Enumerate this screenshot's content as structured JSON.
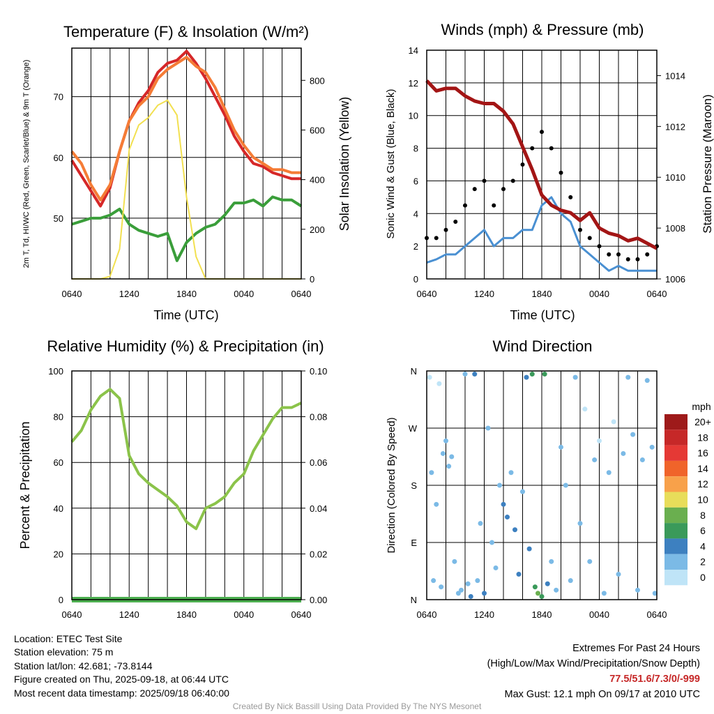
{
  "chart_data": [
    {
      "type": "line",
      "title": "Temperature (F) & Insolation (W/m²)",
      "xlabel": "Time (UTC)",
      "ylabel": "2m T, Td, HI/WC (Red, Green, Scarlet/Blue) & 9m T (Orange)",
      "ylabel_right": "Solar Insolation (Yellow)",
      "x_ticks": [
        "0640",
        "1240",
        "1840",
        "0040",
        "0640"
      ],
      "ylim": [
        40,
        78
      ],
      "y_ticks": [
        50,
        60,
        70
      ],
      "ylim_right": [
        0,
        930
      ],
      "y_ticks_right": [
        0,
        200,
        400,
        600,
        800
      ],
      "grid": true,
      "hours": [
        0,
        1,
        2,
        3,
        4,
        5,
        6,
        7,
        8,
        9,
        10,
        11,
        12,
        13,
        14,
        15,
        16,
        17,
        18,
        19,
        20,
        21,
        22,
        23,
        24
      ],
      "series": [
        {
          "key": "temp2m",
          "color": "#d62728",
          "values": [
            59.5,
            57,
            54.5,
            52,
            55,
            61,
            66,
            69,
            71,
            74,
            75.5,
            76,
            77.5,
            75.5,
            73,
            70,
            67,
            63.5,
            61,
            59,
            58.5,
            57.5,
            57,
            56.5,
            56.5
          ]
        },
        {
          "key": "temp9m",
          "color": "#f57c36",
          "values": [
            61,
            59,
            55.5,
            53,
            55.5,
            61,
            66,
            68.5,
            70,
            73,
            74.5,
            75.5,
            76.5,
            75,
            74,
            71.5,
            68,
            64.5,
            62,
            60,
            59,
            58,
            58,
            57.5,
            57.5
          ]
        },
        {
          "key": "dewpoint",
          "color": "#3a9e3a",
          "values": [
            49,
            49.5,
            50,
            50,
            50.5,
            51.5,
            49,
            48,
            47.5,
            47,
            47.5,
            43,
            46,
            47.5,
            48.5,
            49,
            50.5,
            52.5,
            52.5,
            53,
            52,
            53.5,
            53,
            53,
            52
          ]
        },
        {
          "key": "insolation",
          "color": "#f2e050",
          "values": [
            0,
            0,
            0,
            0,
            10,
            120,
            520,
            620,
            650,
            700,
            720,
            660,
            330,
            90,
            0,
            0,
            0,
            0,
            0,
            0,
            0,
            0,
            0,
            0,
            0
          ]
        }
      ]
    },
    {
      "type": "line",
      "title": "Winds (mph) & Pressure (mb)",
      "xlabel": "Time (UTC)",
      "ylabel": "Sonic Wind & Gust (Blue, Black)",
      "ylabel_right": "Station Pressure (Maroon)",
      "x_ticks": [
        "0640",
        "1240",
        "1840",
        "0040",
        "0640"
      ],
      "ylim": [
        0,
        14
      ],
      "y_ticks": [
        0,
        2,
        4,
        6,
        8,
        10,
        12,
        14
      ],
      "ylim_right": [
        1006,
        1015
      ],
      "y_ticks_right": [
        1006,
        1008,
        1010,
        1012,
        1014
      ],
      "grid": true,
      "hours": [
        0,
        1,
        2,
        3,
        4,
        5,
        6,
        7,
        8,
        9,
        10,
        11,
        12,
        13,
        14,
        15,
        16,
        17,
        18,
        19,
        20,
        21,
        22,
        23,
        24
      ],
      "series": [
        {
          "key": "wind",
          "color": "#4a90d2",
          "values": [
            1,
            1.2,
            1.5,
            1.5,
            2,
            2.5,
            3,
            2,
            2.5,
            2.5,
            3,
            3,
            4.5,
            5,
            4,
            3.5,
            2,
            1.5,
            1,
            0.5,
            0.8,
            0.5,
            0.5,
            0.5,
            0.5
          ]
        },
        {
          "key": "gust",
          "color": "#000000",
          "values": [
            2.5,
            2.5,
            3,
            3.5,
            4.5,
            5.5,
            6,
            4.5,
            5.5,
            6,
            7,
            8,
            9,
            8,
            6.5,
            5,
            3,
            2.5,
            2,
            1.5,
            1.5,
            1.2,
            1.2,
            1.5,
            2
          ]
        },
        {
          "key": "pressure",
          "color": "#a31515",
          "values": [
            1013.8,
            1013.4,
            1013.5,
            1013.5,
            1013.2,
            1013,
            1012.9,
            1012.9,
            1012.6,
            1012.1,
            1011.2,
            1010.3,
            1009.3,
            1008.9,
            1008.7,
            1008.6,
            1008.3,
            1008.6,
            1008.0,
            1007.8,
            1007.7,
            1007.5,
            1007.6,
            1007.4,
            1007.2
          ]
        }
      ]
    },
    {
      "type": "line",
      "title": "Relative Humidity (%) & Precipitation (in)",
      "xlabel": "",
      "ylabel": "Percent & Precipitation",
      "x_ticks": [
        "0640",
        "1240",
        "1840",
        "0040",
        "0640"
      ],
      "ylim": [
        0,
        100
      ],
      "y_ticks": [
        0,
        20,
        40,
        60,
        80,
        100
      ],
      "ylim_right": [
        0,
        0.1
      ],
      "y_ticks_right": [
        "0.00",
        "0.02",
        "0.04",
        "0.06",
        "0.08",
        "0.10"
      ],
      "grid": true,
      "hours": [
        0,
        1,
        2,
        3,
        4,
        5,
        6,
        7,
        8,
        9,
        10,
        11,
        12,
        13,
        14,
        15,
        16,
        17,
        18,
        19,
        20,
        21,
        22,
        23,
        24
      ],
      "series": [
        {
          "key": "rh",
          "color": "#8bc34a",
          "values": [
            69,
            74,
            83,
            89,
            92,
            88,
            63,
            55,
            51,
            48,
            45,
            41,
            34,
            31,
            40,
            42,
            45,
            51,
            55,
            65,
            72,
            79,
            84,
            84,
            86
          ]
        },
        {
          "key": "precip",
          "color": "#4caf50",
          "values": [
            0,
            0,
            0,
            0,
            0,
            0,
            0,
            0,
            0,
            0,
            0,
            0,
            0,
            0,
            0,
            0,
            0,
            0,
            0,
            0,
            0,
            0,
            0,
            0,
            0
          ]
        }
      ]
    },
    {
      "type": "scatter",
      "title": "Wind Direction",
      "xlabel": "",
      "ylabel": "Direction (Colored By Speed)",
      "x_ticks": [
        "0640",
        "1240",
        "1840",
        "0040",
        "0640"
      ],
      "y_ticks": [
        "N",
        "E",
        "S",
        "W",
        "N"
      ],
      "ylim": [
        0,
        360
      ],
      "grid": true,
      "colorbar": {
        "unit": "mph",
        "labels": [
          "20+",
          "18",
          "16",
          "14",
          "12",
          "10",
          "8",
          "6",
          "4",
          "2",
          "0"
        ],
        "colors": [
          "#9e1a1a",
          "#c62828",
          "#e53935",
          "#f0642a",
          "#f8a14a",
          "#e8dd5a",
          "#6aaf4f",
          "#3a9a5a",
          "#3d80c0",
          "#7bbae6",
          "#bfe4f7"
        ]
      },
      "points": [
        {
          "hour": 0.3,
          "dir": 350,
          "mph": 0.5
        },
        {
          "hour": 0.5,
          "dir": 200,
          "mph": 1
        },
        {
          "hour": 0.7,
          "dir": 30,
          "mph": 1
        },
        {
          "hour": 1,
          "dir": 150,
          "mph": 1
        },
        {
          "hour": 1.3,
          "dir": 340,
          "mph": 0.5
        },
        {
          "hour": 1.5,
          "dir": 20,
          "mph": 1
        },
        {
          "hour": 1.7,
          "dir": 230,
          "mph": 1.5
        },
        {
          "hour": 2,
          "dir": 250,
          "mph": 1
        },
        {
          "hour": 2.3,
          "dir": 210,
          "mph": 1.5
        },
        {
          "hour": 2.6,
          "dir": 225,
          "mph": 1
        },
        {
          "hour": 2.9,
          "dir": 60,
          "mph": 1
        },
        {
          "hour": 3.3,
          "dir": 10,
          "mph": 2
        },
        {
          "hour": 3.6,
          "dir": 15,
          "mph": 2.5
        },
        {
          "hour": 4,
          "dir": 355,
          "mph": 2.5
        },
        {
          "hour": 4.3,
          "dir": 25,
          "mph": 2
        },
        {
          "hour": 4.6,
          "dir": 5,
          "mph": 3.5
        },
        {
          "hour": 5,
          "dir": 355,
          "mph": 3
        },
        {
          "hour": 5.3,
          "dir": 30,
          "mph": 2.5
        },
        {
          "hour": 5.6,
          "dir": 120,
          "mph": 1.5
        },
        {
          "hour": 6,
          "dir": 10,
          "mph": 3
        },
        {
          "hour": 6.4,
          "dir": 270,
          "mph": 1
        },
        {
          "hour": 6.8,
          "dir": 90,
          "mph": 2
        },
        {
          "hour": 7.2,
          "dir": 50,
          "mph": 2
        },
        {
          "hour": 7.6,
          "dir": 180,
          "mph": 2.5
        },
        {
          "hour": 8,
          "dir": 150,
          "mph": 3.5
        },
        {
          "hour": 8.4,
          "dir": 130,
          "mph": 3
        },
        {
          "hour": 8.8,
          "dir": 200,
          "mph": 2.5
        },
        {
          "hour": 9.2,
          "dir": 110,
          "mph": 3.5
        },
        {
          "hour": 9.6,
          "dir": 40,
          "mph": 4.5
        },
        {
          "hour": 10,
          "dir": 170,
          "mph": 2
        },
        {
          "hour": 10.4,
          "dir": 350,
          "mph": 4
        },
        {
          "hour": 10.7,
          "dir": 80,
          "mph": 3
        },
        {
          "hour": 11,
          "dir": 355,
          "mph": 6
        },
        {
          "hour": 11.3,
          "dir": 20,
          "mph": 6.5
        },
        {
          "hour": 11.6,
          "dir": 10,
          "mph": 7
        },
        {
          "hour": 12,
          "dir": 5,
          "mph": 6
        },
        {
          "hour": 12.3,
          "dir": 355,
          "mph": 5.5
        },
        {
          "hour": 12.6,
          "dir": 25,
          "mph": 4
        },
        {
          "hour": 13,
          "dir": 60,
          "mph": 2.5
        },
        {
          "hour": 13.5,
          "dir": 15,
          "mph": 2
        },
        {
          "hour": 14,
          "dir": 240,
          "mph": 1
        },
        {
          "hour": 14.5,
          "dir": 180,
          "mph": 1.5
        },
        {
          "hour": 15,
          "dir": 30,
          "mph": 1.5
        },
        {
          "hour": 15.5,
          "dir": 350,
          "mph": 1
        },
        {
          "hour": 16,
          "dir": 120,
          "mph": 1
        },
        {
          "hour": 16.5,
          "dir": 300,
          "mph": 0.5
        },
        {
          "hour": 17,
          "dir": 60,
          "mph": 1
        },
        {
          "hour": 17.5,
          "dir": 220,
          "mph": 1
        },
        {
          "hour": 18,
          "dir": 250,
          "mph": 0.5
        },
        {
          "hour": 18.5,
          "dir": 10,
          "mph": 1
        },
        {
          "hour": 19,
          "dir": 200,
          "mph": 1
        },
        {
          "hour": 19.5,
          "dir": 280,
          "mph": 0.5
        },
        {
          "hour": 20,
          "dir": 40,
          "mph": 1
        },
        {
          "hour": 20.5,
          "dir": 230,
          "mph": 1.5
        },
        {
          "hour": 21,
          "dir": 350,
          "mph": 1
        },
        {
          "hour": 21.5,
          "dir": 260,
          "mph": 1
        },
        {
          "hour": 22,
          "dir": 15,
          "mph": 1
        },
        {
          "hour": 22.5,
          "dir": 220,
          "mph": 1.5
        },
        {
          "hour": 23,
          "dir": 345,
          "mph": 1
        },
        {
          "hour": 23.5,
          "dir": 240,
          "mph": 1
        },
        {
          "hour": 23.8,
          "dir": 10,
          "mph": 1
        }
      ]
    }
  ],
  "info": {
    "location": "Location: ETEC Test Site",
    "elevation": "Station elevation: 75 m",
    "latlon": "Station lat/lon: 42.681; -73.8144",
    "created": "Figure created on Thu, 2025-09-18, at 06:44 UTC",
    "recent": "Most recent data timestamp: 2025/09/18 06:40:00",
    "extremes_title": "Extremes For Past 24 Hours",
    "extremes_sub": "(High/Low/Max Wind/Precipitation/Snow Depth)",
    "extremes_values": "77.5/51.6/7.3/0/-999",
    "max_gust": "Max Gust: 12.1 mph On 09/17 at 2010 UTC",
    "credit": "Created By Nick Bassill Using Data Provided By The NYS Mesonet"
  }
}
